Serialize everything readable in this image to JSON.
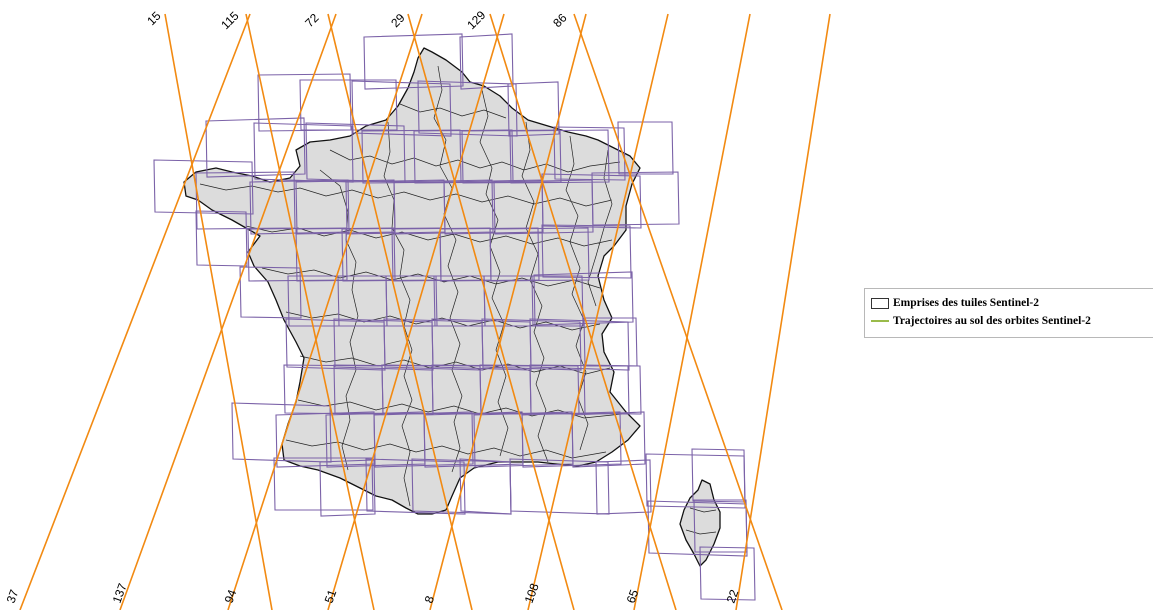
{
  "map": {
    "orbit_color": "#f28a12",
    "tile_color": "#7b62a8",
    "land_color": "#dcdcdc",
    "top_labels": [
      "15",
      "115",
      "72",
      "29",
      "129",
      "86"
    ],
    "bottom_labels": [
      "37",
      "137",
      "94",
      "51",
      "8",
      "108",
      "65",
      "22"
    ]
  },
  "legend": {
    "tiles_label": "Emprises des tuiles Sentinel-2",
    "orbits_label": "Trajectoires au sol des orbites Sentinel-2",
    "tiles_swatch_color": "#ffffff",
    "orbits_swatch_color": "#9abb4a"
  }
}
